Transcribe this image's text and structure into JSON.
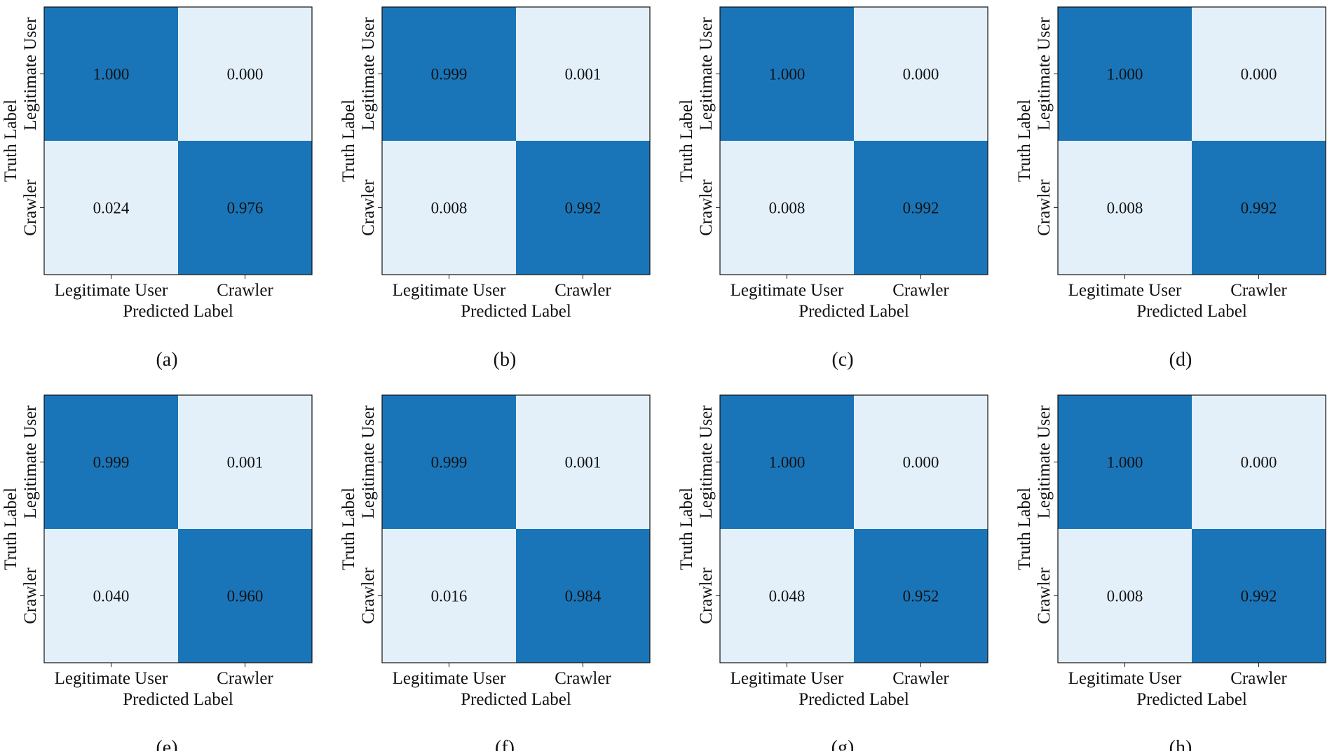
{
  "figure": {
    "colors": {
      "high": "#1a75b8",
      "low": "#e3f0fa",
      "border": "#111111",
      "text": "#111111"
    }
  },
  "chart_data": [
    {
      "panel": "(a)",
      "type": "heatmap",
      "xlabel": "Predicted Label",
      "ylabel": "Truth Label",
      "x_categories": [
        "Legitimate User",
        "Crawler"
      ],
      "y_categories": [
        "Legitimate User",
        "Crawler"
      ],
      "values": [
        [
          "1.000",
          "0.000"
        ],
        [
          "0.024",
          "0.976"
        ]
      ]
    },
    {
      "panel": "(b)",
      "type": "heatmap",
      "xlabel": "Predicted Label",
      "ylabel": "Truth Label",
      "x_categories": [
        "Legitimate User",
        "Crawler"
      ],
      "y_categories": [
        "Legitimate User",
        "Crawler"
      ],
      "values": [
        [
          "0.999",
          "0.001"
        ],
        [
          "0.008",
          "0.992"
        ]
      ]
    },
    {
      "panel": "(c)",
      "type": "heatmap",
      "xlabel": "Predicted Label",
      "ylabel": "Truth Label",
      "x_categories": [
        "Legitimate User",
        "Crawler"
      ],
      "y_categories": [
        "Legitimate User",
        "Crawler"
      ],
      "values": [
        [
          "1.000",
          "0.000"
        ],
        [
          "0.008",
          "0.992"
        ]
      ]
    },
    {
      "panel": "(d)",
      "type": "heatmap",
      "xlabel": "Predicted Label",
      "ylabel": "Truth Label",
      "x_categories": [
        "Legitimate User",
        "Crawler"
      ],
      "y_categories": [
        "Legitimate User",
        "Crawler"
      ],
      "values": [
        [
          "1.000",
          "0.000"
        ],
        [
          "0.008",
          "0.992"
        ]
      ]
    },
    {
      "panel": "(e)",
      "type": "heatmap",
      "xlabel": "Predicted Label",
      "ylabel": "Truth Label",
      "x_categories": [
        "Legitimate User",
        "Crawler"
      ],
      "y_categories": [
        "Legitimate User",
        "Crawler"
      ],
      "values": [
        [
          "0.999",
          "0.001"
        ],
        [
          "0.040",
          "0.960"
        ]
      ]
    },
    {
      "panel": "(f)",
      "type": "heatmap",
      "xlabel": "Predicted Label",
      "ylabel": "Truth Label",
      "x_categories": [
        "Legitimate User",
        "Crawler"
      ],
      "y_categories": [
        "Legitimate User",
        "Crawler"
      ],
      "values": [
        [
          "0.999",
          "0.001"
        ],
        [
          "0.016",
          "0.984"
        ]
      ]
    },
    {
      "panel": "(g)",
      "type": "heatmap",
      "xlabel": "Predicted Label",
      "ylabel": "Truth Label",
      "x_categories": [
        "Legitimate User",
        "Crawler"
      ],
      "y_categories": [
        "Legitimate User",
        "Crawler"
      ],
      "values": [
        [
          "1.000",
          "0.000"
        ],
        [
          "0.048",
          "0.952"
        ]
      ]
    },
    {
      "panel": "(h)",
      "type": "heatmap",
      "xlabel": "Predicted Label",
      "ylabel": "Truth Label",
      "x_categories": [
        "Legitimate User",
        "Crawler"
      ],
      "y_categories": [
        "Legitimate User",
        "Crawler"
      ],
      "values": [
        [
          "1.000",
          "0.000"
        ],
        [
          "0.008",
          "0.992"
        ]
      ]
    }
  ]
}
